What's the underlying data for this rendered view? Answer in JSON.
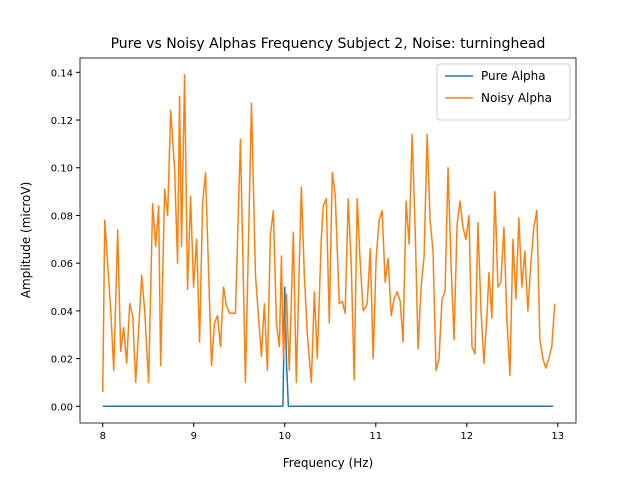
{
  "chart_data": {
    "type": "line",
    "title": "Pure vs Noisy Alphas Frequency Subject 2, Noise: turninghead",
    "xlabel": "Frequency (Hz)",
    "ylabel": "Amplitude (microV)",
    "xlim": [
      7.75,
      13.2
    ],
    "ylim": [
      -0.007,
      0.146
    ],
    "xticks": [
      8,
      9,
      10,
      11,
      12,
      13
    ],
    "yticks": [
      {
        "value": 0,
        "label": "0.00"
      },
      {
        "value": 0.02,
        "label": "0.02"
      },
      {
        "value": 0.04,
        "label": "0.04"
      },
      {
        "value": 0.06,
        "label": "0.06"
      },
      {
        "value": 0.08,
        "label": "0.08"
      },
      {
        "value": 0.1,
        "label": "0.10"
      },
      {
        "value": 0.12,
        "label": "0.12"
      },
      {
        "value": 0.14,
        "label": "0.14"
      }
    ],
    "legend": "upper right",
    "grid": false,
    "series": [
      {
        "name": "Pure Alpha",
        "color": "#1f77b4",
        "x": [
          8.0,
          9.98,
          10.0,
          10.02,
          10.04,
          12.95
        ],
        "values": [
          0,
          0,
          0.05,
          0.017,
          0,
          0
        ]
      },
      {
        "name": "Noisy Alpha",
        "color": "#ff7f0e",
        "x": [
          8.0,
          8.022,
          8.088,
          8.121,
          8.164,
          8.197,
          8.23,
          8.263,
          8.296,
          8.329,
          8.362,
          8.428,
          8.461,
          8.504,
          8.548,
          8.581,
          8.614,
          8.636,
          8.68,
          8.713,
          8.746,
          8.789,
          8.822,
          8.844,
          8.866,
          8.899,
          8.932,
          8.965,
          8.998,
          9.031,
          9.064,
          9.097,
          9.129,
          9.195,
          9.228,
          9.261,
          9.294,
          9.327,
          9.36,
          9.393,
          9.458,
          9.513,
          9.568,
          9.634,
          9.678,
          9.743,
          9.776,
          9.809,
          9.842,
          9.875,
          9.908,
          9.941,
          9.963,
          9.985,
          10.018,
          10.05,
          10.094,
          10.127,
          10.182,
          10.215,
          10.248,
          10.292,
          10.325,
          10.357,
          10.401,
          10.423,
          10.456,
          10.489,
          10.522,
          10.555,
          10.599,
          10.632,
          10.664,
          10.697,
          10.73,
          10.763,
          10.796,
          10.829,
          10.862,
          10.906,
          10.939,
          10.971,
          11.004,
          11.037,
          11.07,
          11.103,
          11.136,
          11.169,
          11.202,
          11.235,
          11.268,
          11.3,
          11.333,
          11.366,
          11.399,
          11.432,
          11.465,
          11.498,
          11.531,
          11.564,
          11.597,
          11.629,
          11.662,
          11.695,
          11.728,
          11.761,
          11.794,
          11.827,
          11.86,
          11.893,
          11.925,
          11.958,
          11.991,
          12.024,
          12.057,
          12.09,
          12.123,
          12.156,
          12.189,
          12.222,
          12.243,
          12.276,
          12.309,
          12.342,
          12.375,
          12.408,
          12.441,
          12.474,
          12.507,
          12.54,
          12.572,
          12.605,
          12.638,
          12.671,
          12.704,
          12.737,
          12.77,
          12.803,
          12.836,
          12.869,
          12.901,
          12.934,
          12.967
        ],
        "values": [
          0.006,
          0.078,
          0.04,
          0.015,
          0.074,
          0.023,
          0.033,
          0.018,
          0.043,
          0.038,
          0.01,
          0.055,
          0.04,
          0.01,
          0.085,
          0.067,
          0.084,
          0.017,
          0.091,
          0.08,
          0.124,
          0.1,
          0.06,
          0.13,
          0.067,
          0.139,
          0.049,
          0.088,
          0.05,
          0.07,
          0.027,
          0.085,
          0.098,
          0.017,
          0.035,
          0.038,
          0.025,
          0.05,
          0.042,
          0.039,
          0.039,
          0.112,
          0.01,
          0.127,
          0.055,
          0.021,
          0.043,
          0.015,
          0.072,
          0.082,
          0.035,
          0.025,
          0.063,
          0.02,
          0.047,
          0.015,
          0.073,
          0.01,
          0.092,
          0.055,
          0.03,
          0.01,
          0.048,
          0.02,
          0.07,
          0.084,
          0.087,
          0.035,
          0.098,
          0.088,
          0.043,
          0.044,
          0.039,
          0.087,
          0.06,
          0.011,
          0.087,
          0.06,
          0.04,
          0.043,
          0.066,
          0.02,
          0.062,
          0.078,
          0.082,
          0.052,
          0.062,
          0.038,
          0.045,
          0.048,
          0.044,
          0.027,
          0.086,
          0.068,
          0.114,
          0.075,
          0.024,
          0.05,
          0.063,
          0.114,
          0.078,
          0.065,
          0.015,
          0.02,
          0.045,
          0.048,
          0.1,
          0.06,
          0.028,
          0.076,
          0.086,
          0.075,
          0.07,
          0.08,
          0.025,
          0.022,
          0.077,
          0.04,
          0.018,
          0.038,
          0.056,
          0.037,
          0.09,
          0.05,
          0.052,
          0.075,
          0.036,
          0.013,
          0.07,
          0.045,
          0.079,
          0.05,
          0.065,
          0.04,
          0.06,
          0.075,
          0.082,
          0.028,
          0.02,
          0.016,
          0.02,
          0.025,
          0.043
        ]
      }
    ]
  }
}
